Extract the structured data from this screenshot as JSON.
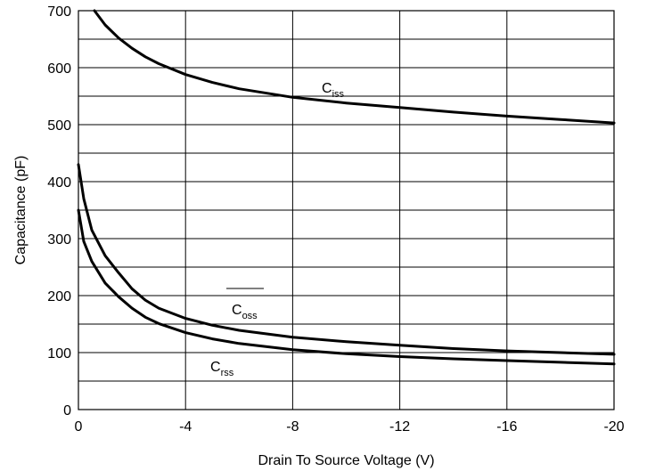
{
  "chart_data": {
    "type": "line",
    "title": "",
    "xlabel": "Drain To Source Voltage (V)",
    "ylabel": "Capacitance (pF)",
    "xlim": [
      0,
      -20
    ],
    "ylim": [
      0,
      700
    ],
    "x_ticks": [
      0,
      -4,
      -8,
      -12,
      -16,
      -20
    ],
    "y_ticks": [
      0,
      100,
      200,
      300,
      400,
      500,
      600,
      700
    ],
    "x_tick_labels": [
      "0",
      "-4",
      "-8",
      "-12",
      "-16",
      "-20"
    ],
    "y_tick_labels": [
      "0",
      "100",
      "200",
      "300",
      "400",
      "500",
      "600",
      "700"
    ],
    "grid": true,
    "series": [
      {
        "name": "Ciss",
        "label_main": "C",
        "label_sub": "iss",
        "x": [
          -0.6,
          -1,
          -1.5,
          -2,
          -2.5,
          -3,
          -4,
          -5,
          -6,
          -8,
          -10,
          -12,
          -14,
          -16,
          -18,
          -20
        ],
        "y": [
          700,
          675,
          652,
          634,
          619,
          607,
          588,
          574,
          563,
          548,
          538,
          530,
          522,
          515,
          509,
          503
        ]
      },
      {
        "name": "Coss",
        "label_main": "C",
        "label_sub": "oss",
        "x": [
          0,
          -0.2,
          -0.5,
          -1,
          -1.5,
          -2,
          -2.5,
          -3,
          -4,
          -5,
          -6,
          -8,
          -10,
          -12,
          -14,
          -16,
          -18,
          -20
        ],
        "y": [
          430,
          370,
          315,
          270,
          240,
          212,
          192,
          178,
          160,
          148,
          139,
          127,
          119,
          113,
          107,
          103,
          100,
          97
        ]
      },
      {
        "name": "Crss",
        "label_main": "C",
        "label_sub": "rss",
        "x": [
          0,
          -0.2,
          -0.5,
          -1,
          -1.5,
          -2,
          -2.5,
          -3,
          -4,
          -5,
          -6,
          -8,
          -10,
          -12,
          -14,
          -16,
          -18,
          -20
        ],
        "y": [
          350,
          295,
          260,
          222,
          198,
          178,
          162,
          151,
          135,
          124,
          116,
          105,
          98,
          93,
          89,
          86,
          83,
          80
        ]
      }
    ]
  }
}
